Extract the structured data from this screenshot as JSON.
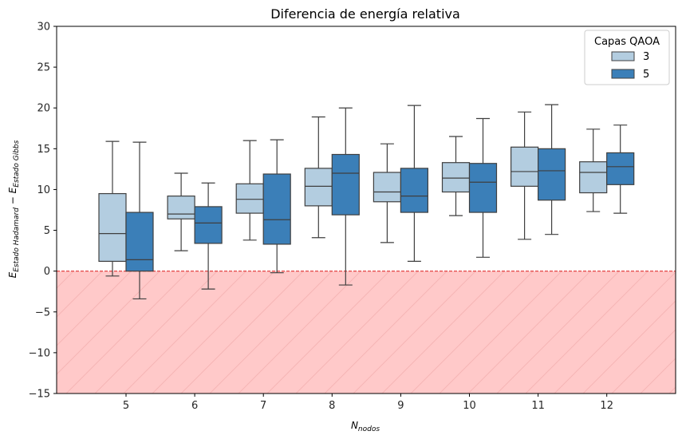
{
  "chart_data": {
    "type": "boxplot",
    "title": "Diferencia de energía relativa",
    "xlabel": {
      "main": "N",
      "sub": "nodos"
    },
    "ylabel": {
      "part1": "E",
      "sub1": "Estado Hadamard",
      "minus": " − ",
      "part2": "E",
      "sub2": "Estado Gibbs"
    },
    "ylim": [
      -15,
      30
    ],
    "yticks": [
      -15,
      -10,
      -5,
      0,
      5,
      10,
      15,
      20,
      25,
      30
    ],
    "ytick_labels": [
      "−15",
      "−10",
      "−5",
      "0",
      "5",
      "10",
      "15",
      "20",
      "25",
      "30"
    ],
    "categories": [
      "5",
      "6",
      "7",
      "8",
      "9",
      "10",
      "11",
      "12"
    ],
    "reference_line": {
      "y": 0,
      "color": "#e03030",
      "style": "dashed"
    },
    "shaded_region": {
      "from": -15,
      "to": 0,
      "color": "#ffc9c9",
      "hatch": "diagonal"
    },
    "legend": {
      "title": "Capas QAOA",
      "position": "top-right"
    },
    "series": [
      {
        "name": "3",
        "color": "#b3cde0",
        "boxes": [
          {
            "whislo": -0.6,
            "q1": 1.2,
            "med": 4.6,
            "q3": 9.5,
            "whishi": 15.9
          },
          {
            "whislo": 2.5,
            "q1": 6.4,
            "med": 7.0,
            "q3": 9.2,
            "whishi": 12.0
          },
          {
            "whislo": 3.8,
            "q1": 7.1,
            "med": 8.8,
            "q3": 10.7,
            "whishi": 16.0
          },
          {
            "whislo": 4.1,
            "q1": 8.0,
            "med": 10.4,
            "q3": 12.6,
            "whishi": 18.9
          },
          {
            "whislo": 3.5,
            "q1": 8.5,
            "med": 9.7,
            "q3": 12.1,
            "whishi": 15.6
          },
          {
            "whislo": 6.8,
            "q1": 9.7,
            "med": 11.4,
            "q3": 13.3,
            "whishi": 16.5
          },
          {
            "whislo": 3.9,
            "q1": 10.4,
            "med": 12.2,
            "q3": 15.2,
            "whishi": 19.5
          },
          {
            "whislo": 7.3,
            "q1": 9.6,
            "med": 12.1,
            "q3": 13.4,
            "whishi": 17.4
          }
        ]
      },
      {
        "name": "5",
        "color": "#3b7fb8",
        "boxes": [
          {
            "whislo": -3.4,
            "q1": 0.0,
            "med": 1.4,
            "q3": 7.2,
            "whishi": 15.8
          },
          {
            "whislo": -2.2,
            "q1": 3.4,
            "med": 5.9,
            "q3": 7.9,
            "whishi": 10.8
          },
          {
            "whislo": -0.2,
            "q1": 3.3,
            "med": 6.3,
            "q3": 11.9,
            "whishi": 16.1
          },
          {
            "whislo": -1.7,
            "q1": 6.9,
            "med": 12.0,
            "q3": 14.3,
            "whishi": 20.0
          },
          {
            "whislo": 1.2,
            "q1": 7.2,
            "med": 9.2,
            "q3": 12.6,
            "whishi": 20.3
          },
          {
            "whislo": 1.7,
            "q1": 7.2,
            "med": 10.9,
            "q3": 13.2,
            "whishi": 18.7
          },
          {
            "whislo": 4.5,
            "q1": 8.7,
            "med": 12.3,
            "q3": 15.0,
            "whishi": 20.4
          },
          {
            "whislo": 7.1,
            "q1": 10.6,
            "med": 12.8,
            "q3": 14.5,
            "whishi": 17.9
          }
        ]
      }
    ]
  }
}
